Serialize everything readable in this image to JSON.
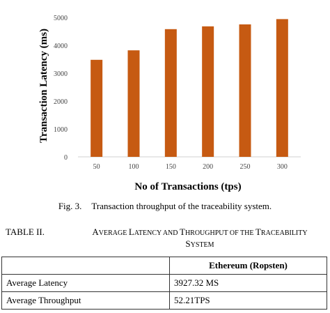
{
  "chart_data": {
    "type": "bar",
    "categories": [
      "50",
      "100",
      "150",
      "200",
      "250",
      "300"
    ],
    "values": [
      3480,
      3820,
      4580,
      4680,
      4750,
      4940
    ],
    "ylim": [
      0,
      5000
    ],
    "yticks": [
      "0",
      "1000",
      "2000",
      "3000",
      "4000",
      "5000"
    ],
    "ylabel": "Transaction Latency (ms)",
    "xlabel": "No of Transactions (tps)",
    "bar_color": "#c65a12",
    "grid": false,
    "legend": "none"
  },
  "figure_caption": {
    "label": "Fig. 3.",
    "text": "Transaction throughput of the traceability system."
  },
  "table_title": {
    "number": "TABLE II.",
    "parts": [
      {
        "big": "A",
        "small": "VERAGE "
      },
      {
        "big": "L",
        "small": "ATENCY AND "
      },
      {
        "big": "T",
        "small": "HROUGHPUT OF THE "
      },
      {
        "big": "T",
        "small": "RACEABILITY"
      }
    ],
    "line2": {
      "big": "S",
      "small": "YSTEM"
    }
  },
  "table": {
    "header": [
      "",
      "Ethereum (Ropsten)"
    ],
    "rows": [
      [
        "Average Latency",
        "3927.32 MS"
      ],
      [
        "Average Throughput",
        "52.21TPS"
      ]
    ]
  }
}
